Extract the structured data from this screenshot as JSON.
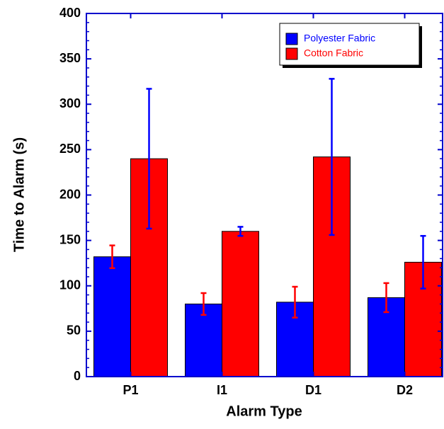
{
  "chart_data": {
    "type": "bar",
    "xlabel": "Alarm Type",
    "ylabel": "Time to Alarm (s)",
    "categories": [
      "P1",
      "I1",
      "D1",
      "D2"
    ],
    "series": [
      {
        "name": "Polyester Fabric",
        "color": "#0000ff",
        "error_color": "#ff0000",
        "values": [
          132,
          80,
          82,
          87
        ],
        "errors": [
          12.5,
          12,
          17,
          16
        ]
      },
      {
        "name": "Cotton Fabric",
        "color": "#ff0000",
        "error_color": "#0000ff",
        "values": [
          240,
          160,
          242,
          126
        ],
        "errors": [
          77,
          5,
          86,
          29
        ]
      }
    ],
    "ylim": [
      0,
      400
    ],
    "yticks": [
      0,
      50,
      100,
      150,
      200,
      250,
      300,
      350,
      400
    ],
    "legend": "upper right"
  }
}
